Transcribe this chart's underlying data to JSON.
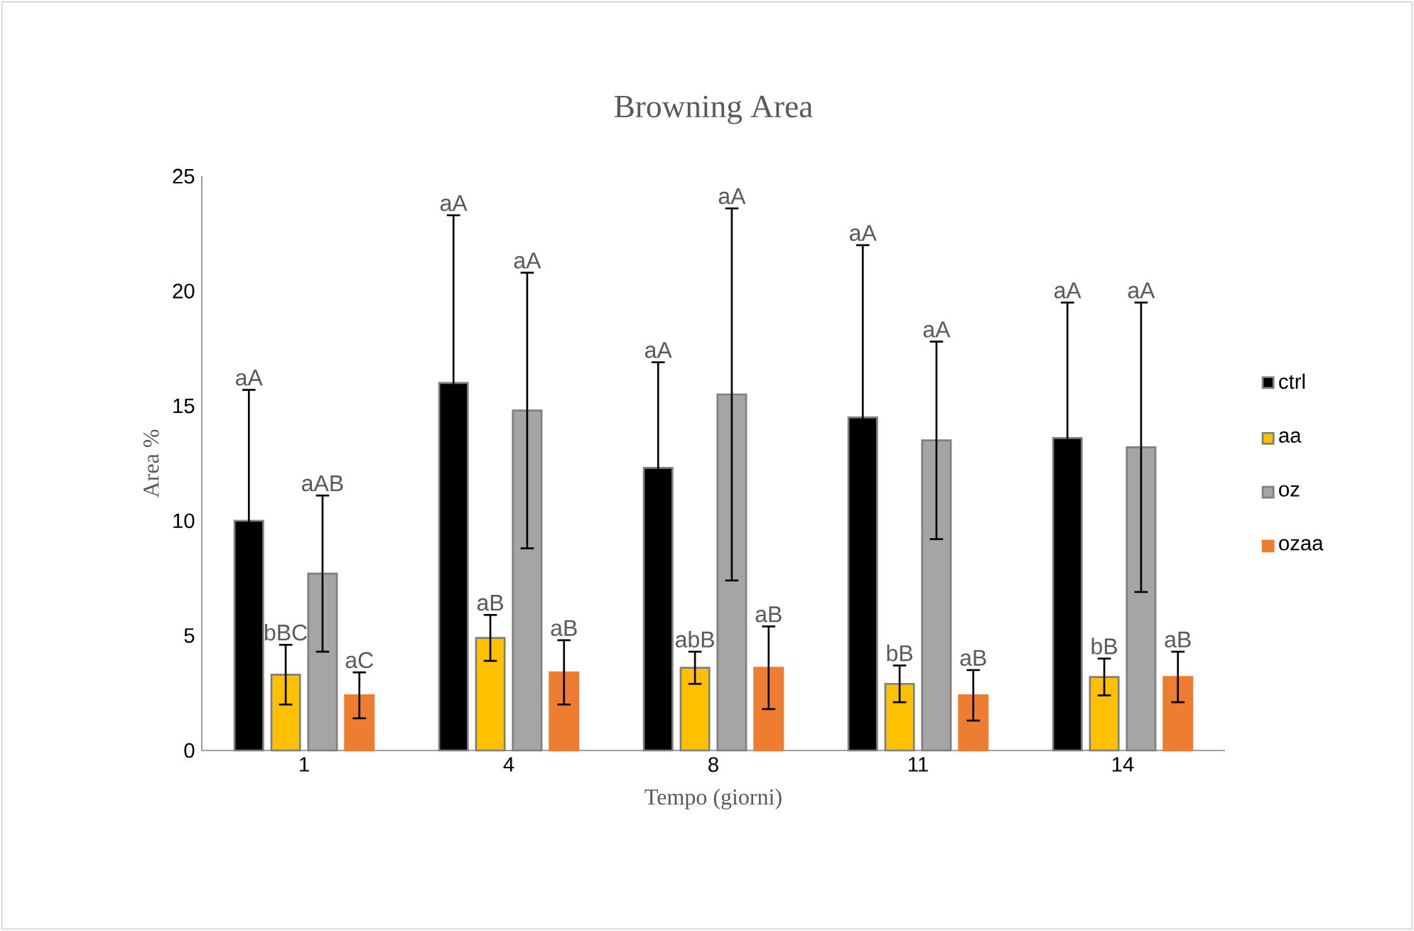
{
  "chart_data": {
    "type": "bar",
    "title": "Browning Area",
    "xlabel": "Tempo (giorni)",
    "ylabel": "Area %",
    "categories": [
      "1",
      "4",
      "8",
      "11",
      "14"
    ],
    "series": [
      {
        "name": "ctrl",
        "color": "#000000",
        "values": [
          10.0,
          16.0,
          12.3,
          14.5,
          13.6
        ],
        "errors": [
          5.7,
          7.3,
          4.6,
          7.5,
          5.9
        ]
      },
      {
        "name": "aa",
        "color": "#ffc000",
        "values": [
          3.3,
          4.9,
          3.6,
          2.9,
          3.2
        ],
        "errors": [
          1.3,
          1.0,
          0.7,
          0.8,
          0.8
        ]
      },
      {
        "name": "oz",
        "color": "#a5a5a5",
        "values": [
          7.7,
          14.8,
          15.5,
          13.5,
          13.2
        ],
        "errors": [
          3.4,
          6.0,
          8.1,
          4.3,
          6.3
        ]
      },
      {
        "name": "ozaa",
        "color": "#ed7d31",
        "values": [
          2.4,
          3.4,
          3.6,
          2.4,
          3.2
        ],
        "errors": [
          1.0,
          1.4,
          1.8,
          1.1,
          1.1
        ]
      }
    ],
    "annotations": [
      "aA",
      "aA",
      "aA",
      "aA",
      "aA",
      "bBC",
      "aB",
      "abB",
      "bB",
      "bB",
      "aAB",
      "aA",
      "aA",
      "aA",
      "aA",
      "aC",
      "aB",
      "aB",
      "aB",
      "aB"
    ],
    "ylim": [
      0,
      25
    ],
    "yticks": [
      0,
      5,
      10,
      15,
      20,
      25
    ],
    "legend": "right",
    "grid": false
  }
}
